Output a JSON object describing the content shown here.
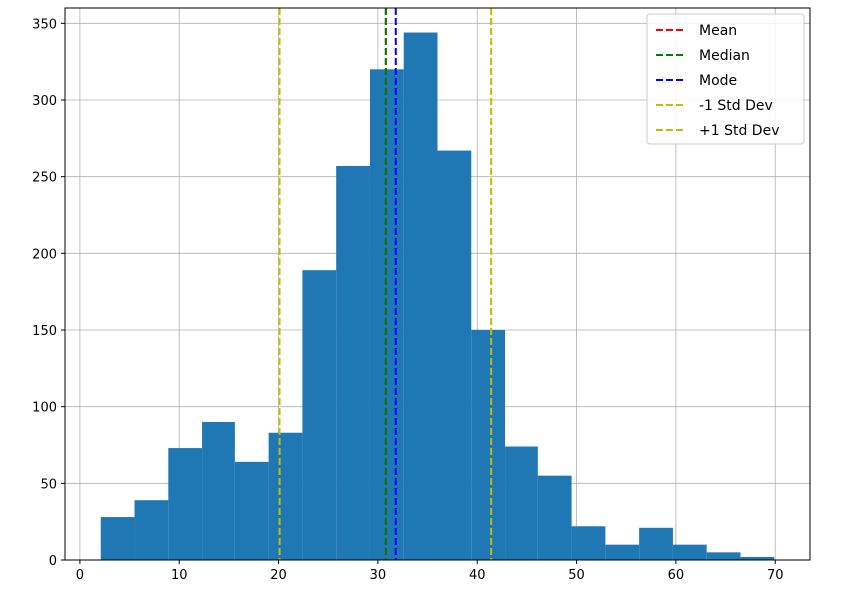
{
  "chart_data": {
    "type": "bar",
    "title": "",
    "xlabel": "",
    "ylabel": "",
    "xlim": [
      -1.5,
      73.5
    ],
    "ylim": [
      0,
      360
    ],
    "x_ticks": [
      0,
      10,
      20,
      30,
      40,
      50,
      60,
      70
    ],
    "y_ticks": [
      0,
      50,
      100,
      150,
      200,
      250,
      300,
      350
    ],
    "grid": true,
    "bar_color": "#1f77b4",
    "bins": [
      {
        "start": 2.1,
        "end": 5.5,
        "value": 28
      },
      {
        "start": 5.5,
        "end": 8.9,
        "value": 39
      },
      {
        "start": 8.9,
        "end": 12.3,
        "value": 73
      },
      {
        "start": 12.3,
        "end": 15.6,
        "value": 90
      },
      {
        "start": 15.6,
        "end": 19.0,
        "value": 64
      },
      {
        "start": 19.0,
        "end": 22.4,
        "value": 83
      },
      {
        "start": 22.4,
        "end": 25.8,
        "value": 189
      },
      {
        "start": 25.8,
        "end": 29.2,
        "value": 257
      },
      {
        "start": 29.2,
        "end": 32.6,
        "value": 320
      },
      {
        "start": 32.6,
        "end": 36.0,
        "value": 344
      },
      {
        "start": 36.0,
        "end": 39.4,
        "value": 267
      },
      {
        "start": 39.4,
        "end": 42.8,
        "value": 150
      },
      {
        "start": 42.8,
        "end": 46.1,
        "value": 74
      },
      {
        "start": 46.1,
        "end": 49.5,
        "value": 55
      },
      {
        "start": 49.5,
        "end": 52.9,
        "value": 22
      },
      {
        "start": 52.9,
        "end": 56.3,
        "value": 10
      },
      {
        "start": 56.3,
        "end": 59.7,
        "value": 21
      },
      {
        "start": 59.7,
        "end": 63.1,
        "value": 10
      },
      {
        "start": 63.1,
        "end": 66.5,
        "value": 5
      },
      {
        "start": 66.5,
        "end": 69.9,
        "value": 2
      }
    ],
    "lines": [
      {
        "name": "Mean",
        "x": 30.8,
        "color": "#ff0000"
      },
      {
        "name": "Median",
        "x": 30.8,
        "color": "#008000"
      },
      {
        "name": "Mode",
        "x": 31.8,
        "color": "#0000ff"
      },
      {
        "name": "-1 Std Dev",
        "x": 20.1,
        "color": "#bfbf00"
      },
      {
        "name": "+1 Std Dev",
        "x": 41.4,
        "color": "#bfbf00"
      }
    ],
    "legend": {
      "placement": "top-right",
      "entries": [
        "Mean",
        "Median",
        "Mode",
        "-1 Std Dev",
        "+1 Std Dev"
      ]
    }
  }
}
